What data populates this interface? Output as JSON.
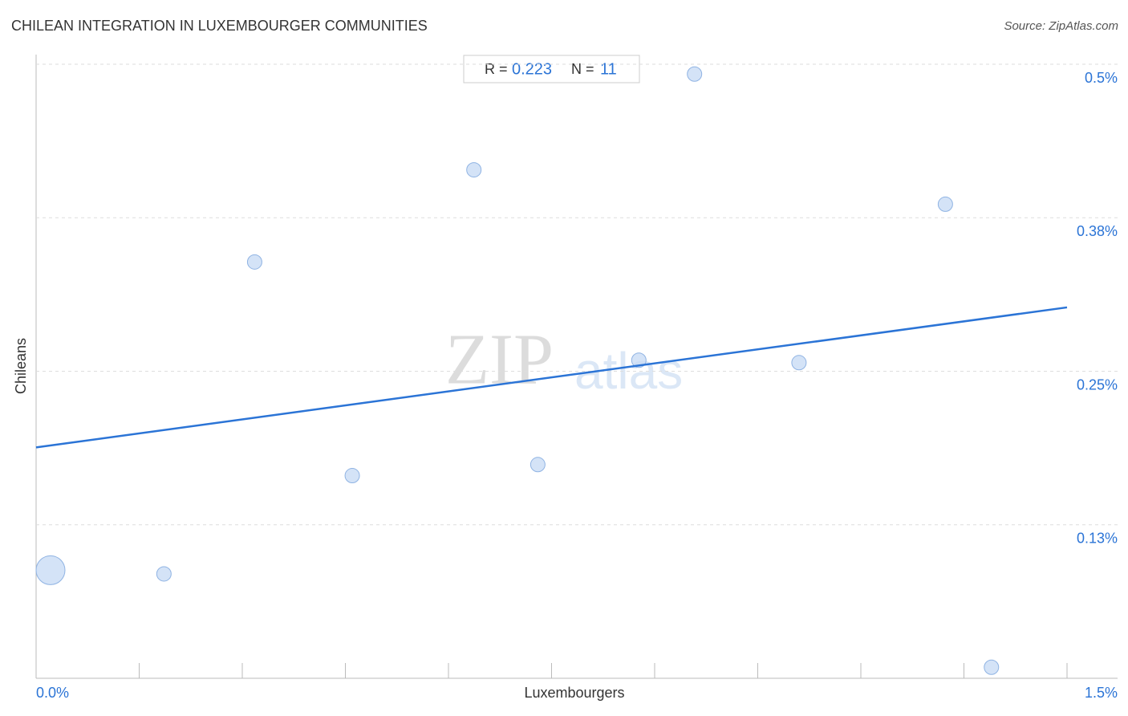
{
  "chart_data": {
    "type": "scatter",
    "title": "CHILEAN INTEGRATION IN LUXEMBOURGER COMMUNITIES",
    "source": "Source: ZipAtlas.com",
    "x_label": "Luxembourgers",
    "y_label": "Chileans",
    "stats": {
      "r_label": "R =",
      "r": "0.223",
      "n_label": "N =",
      "n": "11"
    },
    "watermark": {
      "zip": "ZIP",
      "atlas": "atlas"
    },
    "color": "#c9dcf5",
    "x": [
      0.021,
      0.186,
      0.318,
      0.46,
      0.637,
      0.73,
      0.877,
      0.958,
      1.11,
      1.323,
      1.39
    ],
    "values": [
      0.088,
      0.085,
      0.339,
      0.165,
      0.414,
      0.174,
      0.259,
      0.492,
      0.257,
      0.386,
      0.009
    ],
    "sizes": [
      16,
      4,
      4,
      4,
      4,
      4,
      4,
      4,
      4,
      4,
      4
    ],
    "trendline": {
      "x": [
        0,
        1.5
      ],
      "y": [
        0.188,
        0.302
      ],
      "color": "#2b74d6"
    },
    "xlim": [
      0,
      1.5
    ],
    "ylim": [
      0,
      0.5
    ],
    "xticks": [
      {
        "value": 0,
        "label": "0.0%"
      },
      {
        "value": 1.5,
        "label": "1.5%"
      }
    ],
    "xminor_ticks": [
      0.15,
      0.3,
      0.45,
      0.6,
      0.75,
      0.9,
      1.05,
      1.2,
      1.35
    ],
    "yticks": [
      {
        "value": 0.125,
        "label": "0.13%"
      },
      {
        "value": 0.25,
        "label": "0.25%"
      },
      {
        "value": 0.375,
        "label": "0.38%"
      },
      {
        "value": 0.5,
        "label": "0.5%"
      }
    ],
    "grid": true
  }
}
